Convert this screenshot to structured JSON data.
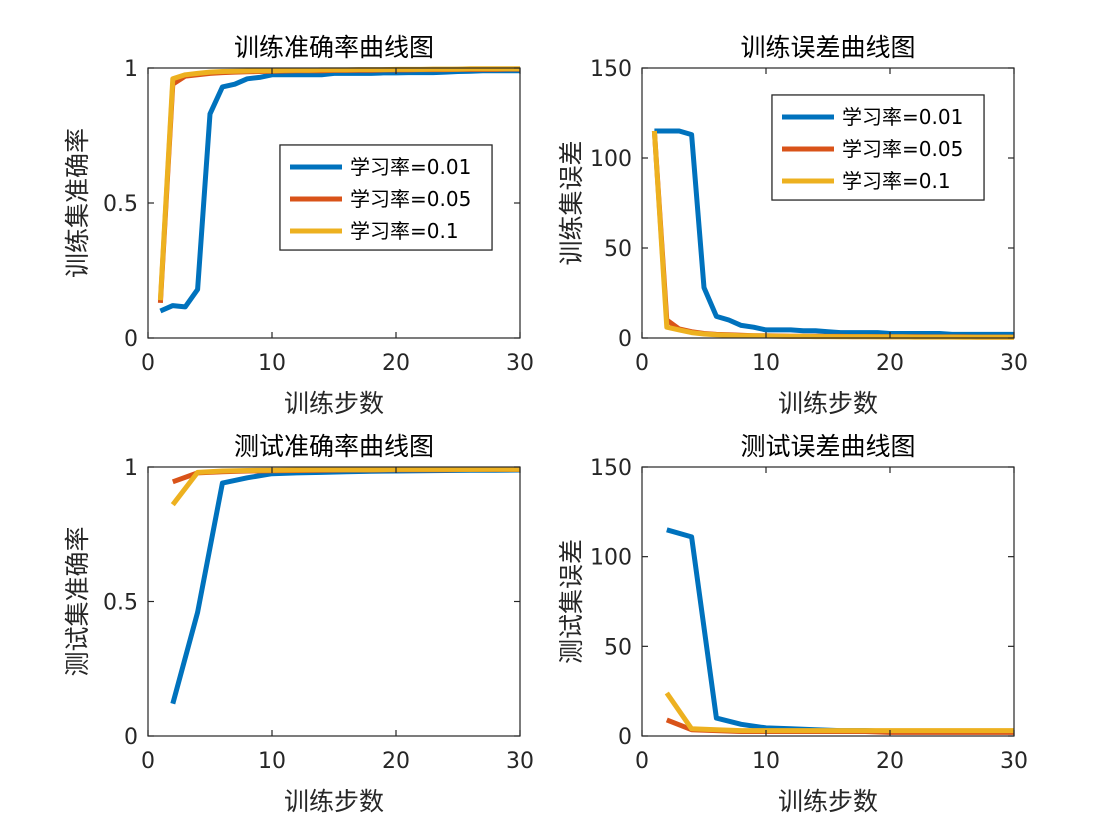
{
  "chart_data": [
    {
      "type": "line",
      "title": "训练准确率曲线图",
      "xlabel": "训练步数",
      "ylabel": "训练集准确率",
      "xlim": [
        0,
        30
      ],
      "ylim": [
        0,
        1
      ],
      "xticks": [
        "0",
        "10",
        "20",
        "30"
      ],
      "yticks": [
        "0",
        "0.5",
        "1"
      ],
      "legend_position": "center-right",
      "grid": false,
      "series": [
        {
          "name": "学习率=0.01",
          "color": "#0072BD",
          "x": [
            1,
            2,
            3,
            4,
            5,
            6,
            7,
            8,
            9,
            10,
            11,
            12,
            13,
            14,
            15,
            16,
            17,
            18,
            19,
            20,
            21,
            22,
            23,
            24,
            25,
            26,
            27,
            28,
            29,
            30
          ],
          "y": [
            0.1,
            0.12,
            0.115,
            0.18,
            0.83,
            0.93,
            0.94,
            0.96,
            0.965,
            0.975,
            0.975,
            0.975,
            0.975,
            0.975,
            0.98,
            0.98,
            0.98,
            0.98,
            0.982,
            0.982,
            0.983,
            0.983,
            0.983,
            0.985,
            0.987,
            0.988,
            0.99,
            0.99,
            0.99,
            0.99
          ]
        },
        {
          "name": "学习率=0.05",
          "color": "#D95319",
          "x": [
            1,
            2,
            3,
            4,
            5,
            6,
            7,
            8,
            9,
            10,
            11,
            12,
            13,
            14,
            15,
            16,
            17,
            18,
            19,
            20,
            21,
            22,
            23,
            24,
            25,
            26,
            27,
            28,
            29,
            30
          ],
          "y": [
            0.13,
            0.94,
            0.97,
            0.975,
            0.98,
            0.983,
            0.985,
            0.986,
            0.987,
            0.988,
            0.989,
            0.99,
            0.99,
            0.99,
            0.991,
            0.991,
            0.992,
            0.992,
            0.993,
            0.993,
            0.993,
            0.994,
            0.994,
            0.994,
            0.995,
            0.995,
            0.995,
            0.995,
            0.996,
            0.996
          ]
        },
        {
          "name": "学习率=0.1",
          "color": "#EDB120",
          "x": [
            1,
            2,
            3,
            4,
            5,
            6,
            7,
            8,
            9,
            10,
            11,
            12,
            13,
            14,
            15,
            16,
            17,
            18,
            19,
            20,
            21,
            22,
            23,
            24,
            25,
            26,
            27,
            28,
            29,
            30
          ],
          "y": [
            0.14,
            0.96,
            0.975,
            0.98,
            0.985,
            0.987,
            0.988,
            0.989,
            0.99,
            0.99,
            0.991,
            0.992,
            0.992,
            0.993,
            0.993,
            0.993,
            0.994,
            0.994,
            0.994,
            0.995,
            0.995,
            0.995,
            0.996,
            0.996,
            0.996,
            0.997,
            0.997,
            0.997,
            0.997,
            0.997
          ]
        }
      ]
    },
    {
      "type": "line",
      "title": "训练误差曲线图",
      "xlabel": "训练步数",
      "ylabel": "训练集误差",
      "xlim": [
        0,
        30
      ],
      "ylim": [
        0,
        150
      ],
      "xticks": [
        "0",
        "10",
        "20",
        "30"
      ],
      "yticks": [
        "0",
        "50",
        "100",
        "150"
      ],
      "legend_position": "top-right",
      "grid": false,
      "series": [
        {
          "name": "学习率=0.01",
          "color": "#0072BD",
          "x": [
            1,
            2,
            3,
            4,
            5,
            6,
            7,
            8,
            9,
            10,
            11,
            12,
            13,
            14,
            15,
            16,
            17,
            18,
            19,
            20,
            21,
            22,
            23,
            24,
            25,
            26,
            27,
            28,
            29,
            30
          ],
          "y": [
            115,
            115,
            115,
            113,
            28,
            12,
            10,
            7,
            6,
            4.5,
            4.5,
            4.5,
            4,
            4,
            3.5,
            3,
            3,
            3,
            3,
            2.5,
            2.5,
            2.5,
            2.5,
            2.5,
            2,
            2,
            2,
            2,
            2,
            2
          ]
        },
        {
          "name": "学习率=0.05",
          "color": "#D95319",
          "x": [
            1,
            2,
            3,
            4,
            5,
            6,
            7,
            8,
            9,
            10,
            11,
            12,
            13,
            14,
            15,
            16,
            17,
            18,
            19,
            20,
            21,
            22,
            23,
            24,
            25,
            26,
            27,
            28,
            29,
            30
          ],
          "y": [
            115,
            10,
            5,
            3.5,
            2.5,
            2,
            1.8,
            1.5,
            1.3,
            1.2,
            1.1,
            1,
            1,
            1,
            0.9,
            0.9,
            0.8,
            0.8,
            0.8,
            0.7,
            0.7,
            0.7,
            0.6,
            0.6,
            0.6,
            0.6,
            0.5,
            0.5,
            0.5,
            0.5
          ]
        },
        {
          "name": "学习率=0.1",
          "color": "#EDB120",
          "x": [
            1,
            2,
            3,
            4,
            5,
            6,
            7,
            8,
            9,
            10,
            11,
            12,
            13,
            14,
            15,
            16,
            17,
            18,
            19,
            20,
            21,
            22,
            23,
            24,
            25,
            26,
            27,
            28,
            29,
            30
          ],
          "y": [
            115,
            6,
            4.5,
            3,
            2.2,
            1.8,
            1.5,
            1.3,
            1.2,
            1.1,
            1,
            0.9,
            0.9,
            0.8,
            0.8,
            0.7,
            0.7,
            0.7,
            0.6,
            0.6,
            0.6,
            0.5,
            0.5,
            0.5,
            0.5,
            0.4,
            0.4,
            0.4,
            0.4,
            0.4
          ]
        }
      ]
    },
    {
      "type": "line",
      "title": "测试准确率曲线图",
      "xlabel": "训练步数",
      "ylabel": "测试集准确率",
      "xlim": [
        0,
        30
      ],
      "ylim": [
        0,
        1
      ],
      "xticks": [
        "0",
        "10",
        "20",
        "30"
      ],
      "yticks": [
        "0",
        "0.5",
        "1"
      ],
      "legend_position": "center-right",
      "grid": false,
      "series": [
        {
          "name": "学习率=0.01",
          "color": "#0072BD",
          "x": [
            2,
            4,
            6,
            8,
            10,
            12,
            14,
            16,
            18,
            20,
            22,
            24,
            26,
            28,
            30
          ],
          "y": [
            0.12,
            0.46,
            0.94,
            0.96,
            0.975,
            0.978,
            0.98,
            0.982,
            0.984,
            0.985,
            0.986,
            0.987,
            0.988,
            0.988,
            0.989
          ]
        },
        {
          "name": "学习率=0.05",
          "color": "#D95319",
          "x": [
            2,
            4,
            6,
            8,
            10,
            12,
            14,
            16,
            18,
            20,
            22,
            24,
            26,
            28,
            30
          ],
          "y": [
            0.945,
            0.978,
            0.982,
            0.985,
            0.986,
            0.987,
            0.988,
            0.989,
            0.989,
            0.99,
            0.99,
            0.99,
            0.991,
            0.991,
            0.991
          ]
        },
        {
          "name": "学习率=0.1",
          "color": "#EDB120",
          "x": [
            2,
            4,
            6,
            8,
            10,
            12,
            14,
            16,
            18,
            20,
            22,
            24,
            26,
            28,
            30
          ],
          "y": [
            0.86,
            0.98,
            0.985,
            0.987,
            0.988,
            0.989,
            0.99,
            0.99,
            0.99,
            0.991,
            0.991,
            0.991,
            0.991,
            0.992,
            0.992
          ]
        }
      ]
    },
    {
      "type": "line",
      "title": "测试误差曲线图",
      "xlabel": "训练步数",
      "ylabel": "测试集误差",
      "xlim": [
        0,
        30
      ],
      "ylim": [
        0,
        150
      ],
      "xticks": [
        "0",
        "10",
        "20",
        "30"
      ],
      "yticks": [
        "0",
        "50",
        "100",
        "150"
      ],
      "legend_position": "top-right",
      "grid": false,
      "series": [
        {
          "name": "学习率=0.01",
          "color": "#0072BD",
          "x": [
            2,
            4,
            6,
            8,
            10,
            12,
            14,
            16,
            18,
            20,
            22,
            24,
            26,
            28,
            30
          ],
          "y": [
            115,
            111,
            10,
            6.5,
            4.5,
            4,
            3.5,
            3,
            3,
            2.5,
            2.5,
            2.5,
            2.5,
            2.5,
            2.5
          ]
        },
        {
          "name": "学习率=0.05",
          "color": "#D95319",
          "x": [
            2,
            4,
            6,
            8,
            10,
            12,
            14,
            16,
            18,
            20,
            22,
            24,
            26,
            28,
            30
          ],
          "y": [
            9,
            3.5,
            3,
            2.5,
            2.5,
            2.5,
            2.5,
            2.5,
            2.5,
            2,
            2,
            2,
            2,
            2,
            2
          ]
        },
        {
          "name": "学习率=0.1",
          "color": "#EDB120",
          "x": [
            2,
            4,
            6,
            8,
            10,
            12,
            14,
            16,
            18,
            20,
            22,
            24,
            26,
            28,
            30
          ],
          "y": [
            24,
            4,
            3.5,
            3,
            3,
            3,
            3,
            3,
            3,
            3,
            3,
            3,
            3,
            3,
            3
          ]
        }
      ]
    }
  ]
}
